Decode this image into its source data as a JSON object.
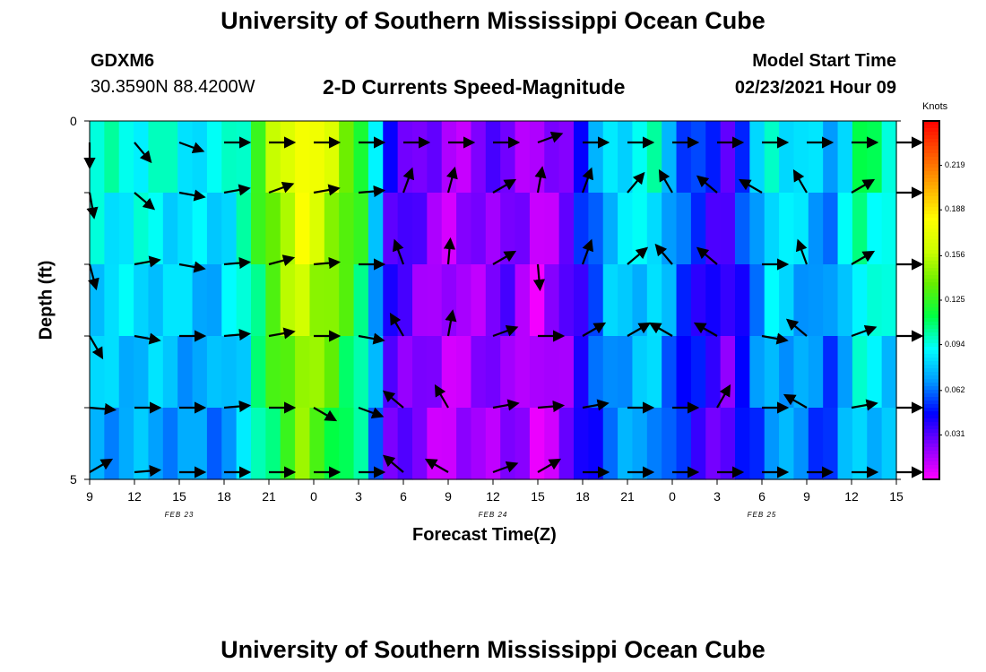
{
  "page": {
    "top_title": "University of Southern Mississippi Ocean Cube",
    "bottom_title": "University of Southern Mississippi Ocean Cube",
    "station_id": "GDXM6",
    "station_coords": "30.3590N 88.4200W",
    "center_title": "2-D Currents Speed-Magnitude",
    "model_start_label": "Model Start Time",
    "model_start_value": "02/23/2021 Hour 09"
  },
  "chart_data": {
    "type": "heatmap",
    "title": "2-D Currents Speed-Magnitude",
    "xlabel": "Forecast Time(Z)",
    "ylabel": "Depth (ft)",
    "ylim": [
      0,
      5
    ],
    "y_ticks": [
      "0",
      "5"
    ],
    "x_tick_labels": [
      "9",
      "12",
      "15",
      "18",
      "21",
      "0",
      "3",
      "6",
      "9",
      "12",
      "15",
      "18",
      "21",
      "0",
      "3",
      "6",
      "9",
      "12",
      "15"
    ],
    "date_labels": [
      {
        "text": "FEB 23",
        "at_tick": 2
      },
      {
        "text": "FEB 24",
        "at_tick": 9
      },
      {
        "text": "FEB 25",
        "at_tick": 15
      }
    ],
    "colorbar": {
      "label": "Knots",
      "min": 0.0,
      "max": 0.25,
      "ticks": [
        "0.219",
        "0.188",
        "0.156",
        "0.125",
        "0.094",
        "0.062",
        "0.031"
      ],
      "tick_values": [
        0.219,
        0.188,
        0.156,
        0.125,
        0.094,
        0.062,
        0.031
      ],
      "colors": [
        "#ff00ff",
        "#8800ff",
        "#0000ff",
        "#0099ff",
        "#00ffff",
        "#00ff44",
        "#66ee00",
        "#ccff00",
        "#ffff00",
        "#ffaa00",
        "#ff5500",
        "#ff0000"
      ]
    },
    "n_time_steps": 55,
    "n_depth_layers": 5,
    "speed_key_times": [
      0,
      4,
      8,
      10,
      12,
      14,
      16,
      18,
      20,
      24,
      28,
      30,
      32,
      35,
      38,
      40,
      43,
      46,
      48,
      50,
      52,
      54
    ],
    "speed_key_values": [
      0.095,
      0.095,
      0.085,
      0.105,
      0.15,
      0.185,
      0.16,
      0.125,
      0.04,
      0.015,
      0.03,
      0.01,
      0.03,
      0.085,
      0.095,
      0.06,
      0.035,
      0.095,
      0.085,
      0.07,
      0.11,
      0.1
    ],
    "vector_times": [
      0,
      3,
      6,
      9,
      12,
      15,
      18,
      21,
      24,
      27,
      30,
      33,
      36,
      39,
      42,
      45,
      48,
      51,
      54
    ],
    "vector_rows_depth": [
      0.3,
      1.0,
      2.0,
      3.0,
      4.0,
      4.9
    ],
    "vector_direction_deg": [
      [
        -90,
        -50,
        -20,
        0,
        0,
        0,
        0,
        0,
        0,
        0,
        20,
        0,
        0,
        0,
        0,
        0,
        0,
        0,
        0
      ],
      [
        -80,
        -40,
        -10,
        10,
        20,
        10,
        5,
        70,
        75,
        30,
        80,
        70,
        50,
        120,
        140,
        150,
        120,
        30,
        0
      ],
      [
        -75,
        10,
        -10,
        5,
        15,
        5,
        0,
        110,
        85,
        30,
        -85,
        70,
        40,
        130,
        140,
        0,
        110,
        30,
        0
      ],
      [
        -60,
        -10,
        0,
        5,
        10,
        0,
        -10,
        120,
        80,
        20,
        0,
        30,
        30,
        150,
        150,
        -10,
        140,
        20,
        0
      ],
      [
        -5,
        0,
        0,
        5,
        0,
        -30,
        -20,
        140,
        120,
        10,
        5,
        10,
        0,
        0,
        60,
        0,
        150,
        10,
        0
      ],
      [
        30,
        5,
        0,
        0,
        0,
        0,
        0,
        140,
        150,
        20,
        30,
        0,
        0,
        0,
        0,
        0,
        0,
        0,
        0
      ]
    ]
  }
}
